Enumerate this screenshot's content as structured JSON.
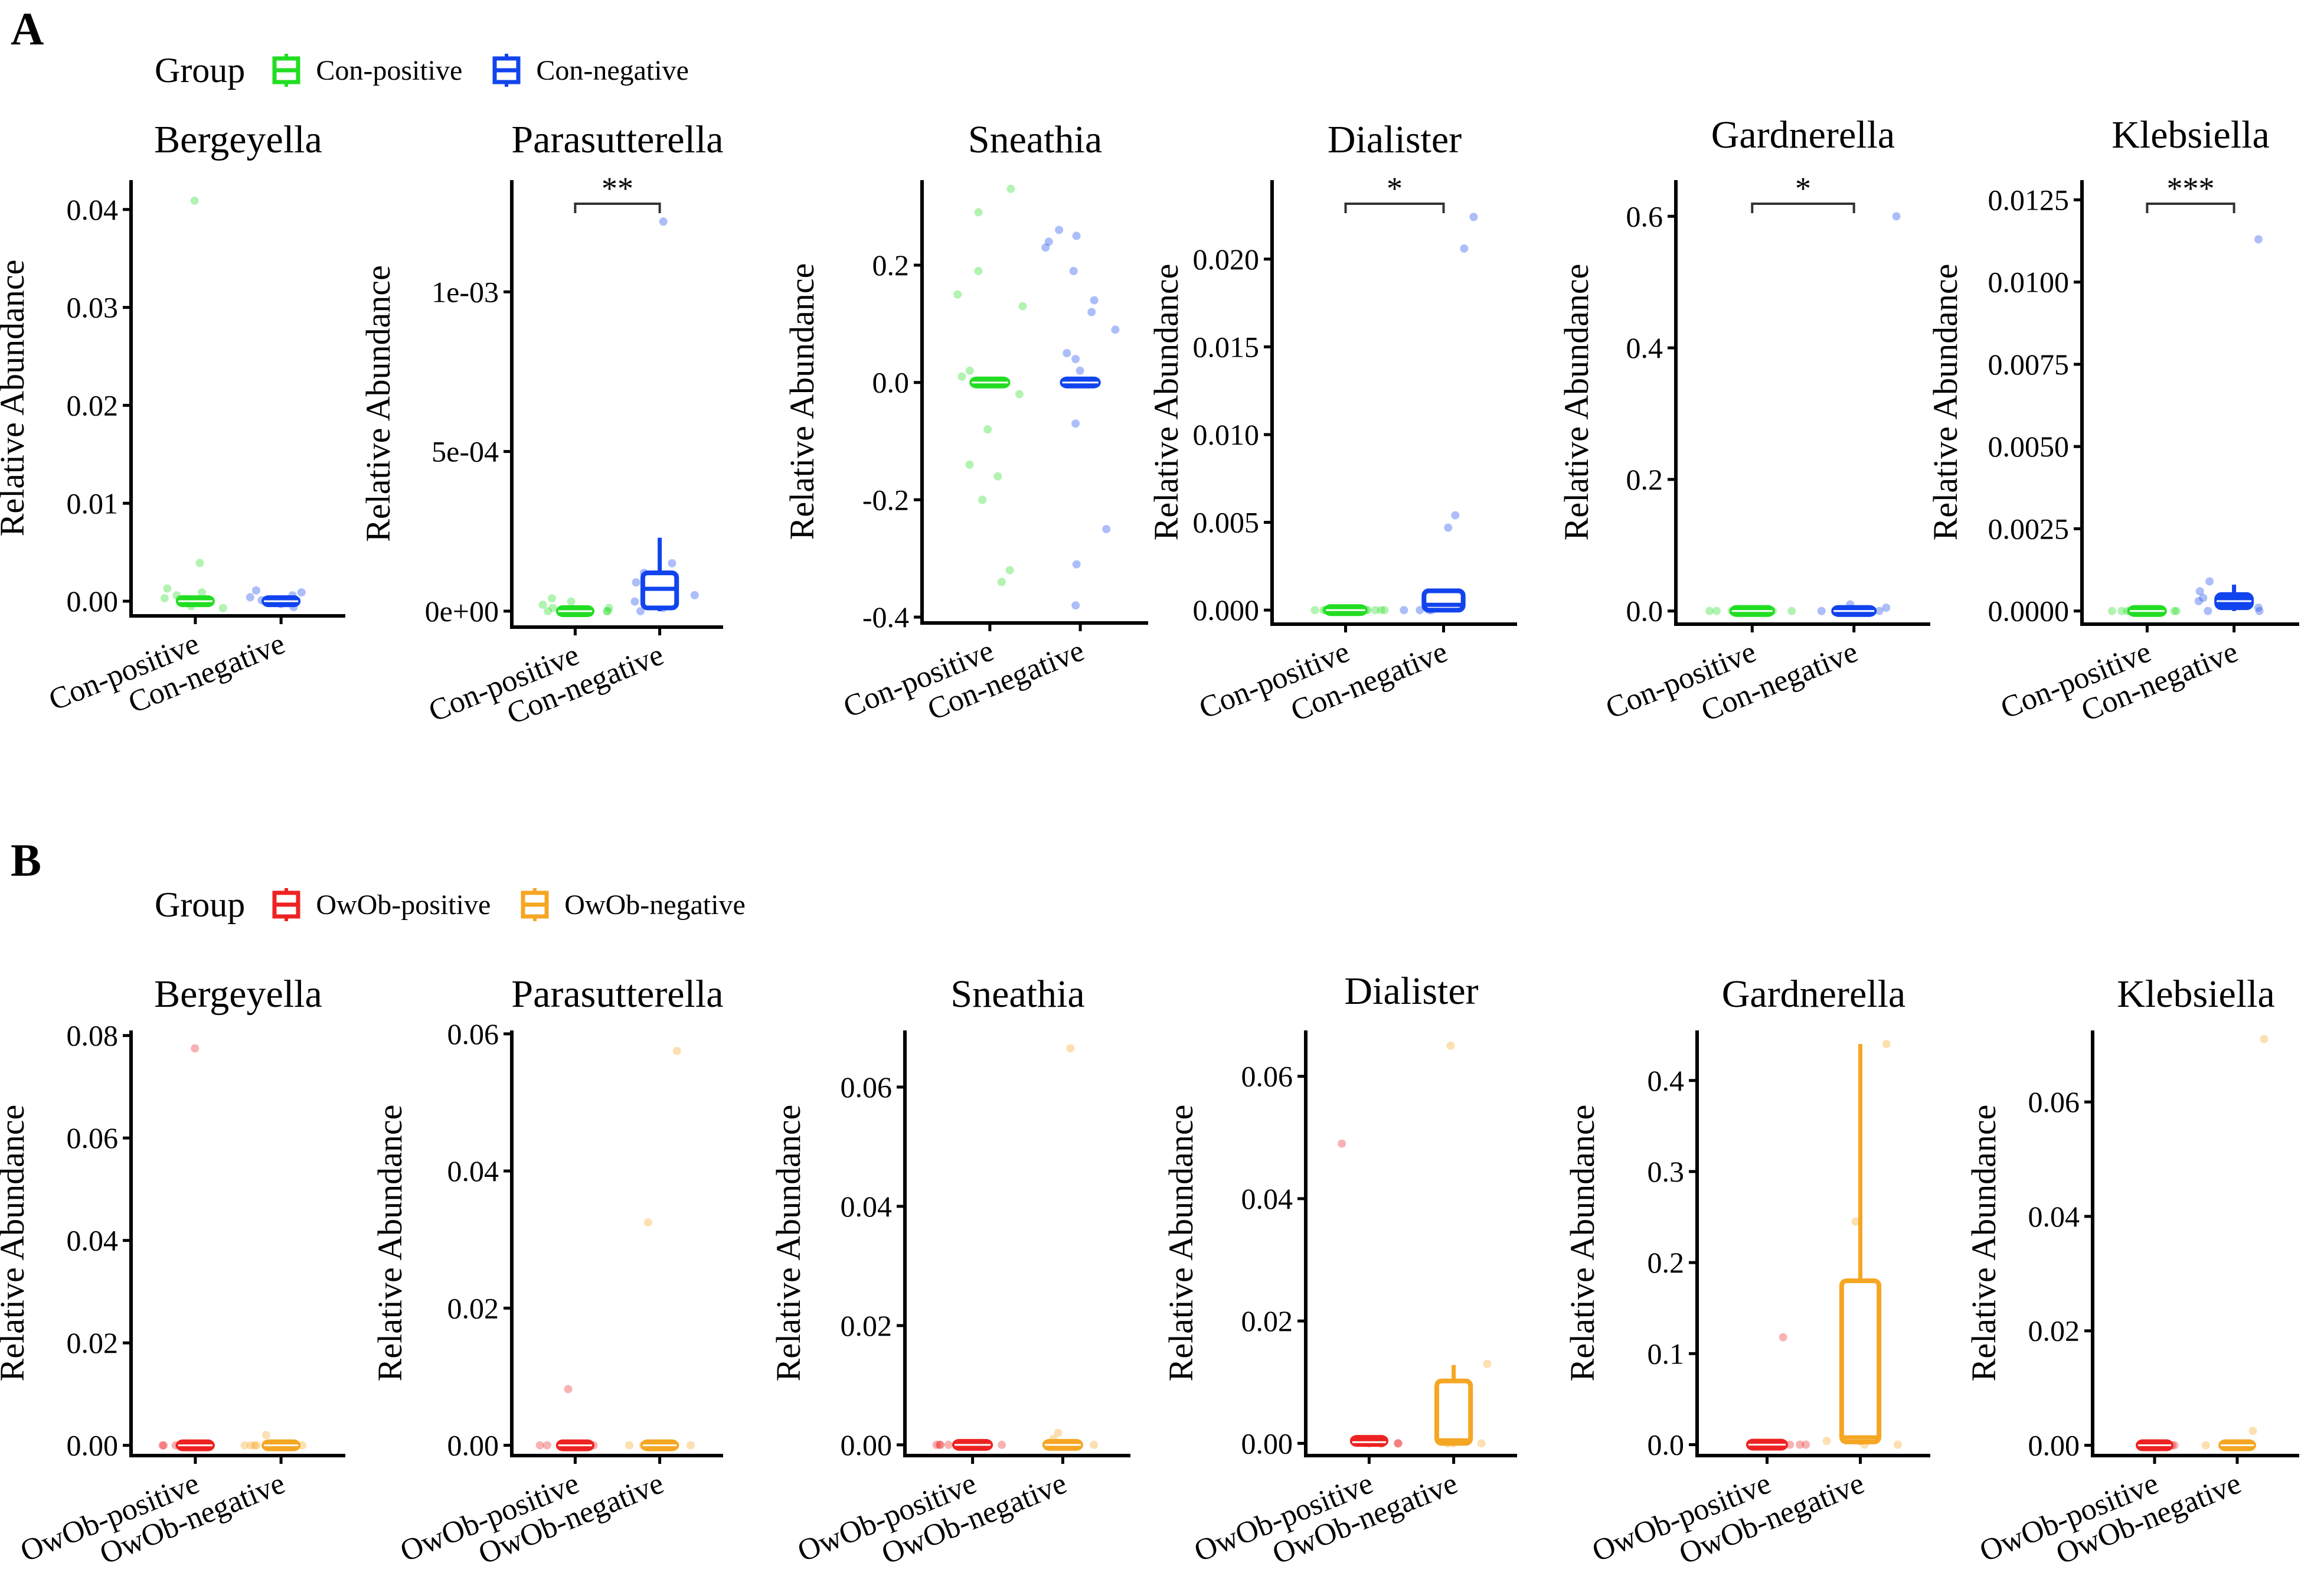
{
  "panels": [
    {
      "letter": "A",
      "legend": {
        "title": "Group",
        "items": [
          {
            "label": "Con-positive",
            "color": "#22dd22"
          },
          {
            "label": "Con-negative",
            "color": "#1144ee"
          }
        ]
      }
    },
    {
      "letter": "B",
      "legend": {
        "title": "Group",
        "items": [
          {
            "label": "OwOb-positive",
            "color": "#ee2222"
          },
          {
            "label": "OwOb-negative",
            "color": "#f5a623"
          }
        ]
      }
    }
  ],
  "chart_data": [
    {
      "type": "box",
      "panel": "A",
      "title": "Bergeyella",
      "ylabel": "Relative Abundance",
      "categories": [
        "Con-positive",
        "Con-negative"
      ],
      "ylim": [
        -0.0015,
        0.043
      ],
      "ticks": [
        0,
        0.01,
        0.02,
        0.03,
        0.04
      ],
      "tick_labels": [
        "0.00",
        "0.01",
        "0.02",
        "0.03",
        "0.04"
      ],
      "colors": [
        "#22dd22",
        "#1144ee"
      ],
      "sig": null,
      "boxes": [
        {
          "q1": 0,
          "median": 0,
          "q3": 0,
          "whisker_low": 0,
          "whisker_high": 0,
          "filled": true
        },
        {
          "q1": 0,
          "median": 0,
          "q3": 0,
          "whisker_low": 0,
          "whisker_high": 0,
          "filled": true
        }
      ],
      "points": [
        [
          0.0409,
          0.0039,
          0.0013,
          0.0006,
          -0.0005,
          0.0001,
          0.0003,
          -0.0007,
          0.0009,
          0,
          0.0002
        ],
        [
          0.0009,
          0.0006,
          0.0004,
          -0.0003,
          0.0001,
          -0.0006,
          0.0011,
          0.0002,
          0
        ]
      ]
    },
    {
      "type": "box",
      "panel": "A",
      "title": "Parasutterella",
      "ylabel": "Relative Abundance",
      "categories": [
        "Con-positive",
        "Con-negative"
      ],
      "ylim": [
        -5e-05,
        0.00135
      ],
      "ticks": [
        0,
        0.0005,
        0.001
      ],
      "tick_labels": [
        "0e+00",
        "5e-04",
        "1e-03"
      ],
      "colors": [
        "#22dd22",
        "#1144ee"
      ],
      "sig": "**",
      "boxes": [
        {
          "q1": 0,
          "median": 0,
          "q3": 0,
          "whisker_low": 0,
          "whisker_high": 0,
          "filled": true
        },
        {
          "q1": 1e-05,
          "median": 7e-05,
          "q3": 0.00012,
          "whisker_low": 0,
          "whisker_high": 0.00023,
          "filled": false
        }
      ],
      "points": [
        [
          4e-05,
          2e-05,
          0,
          1e-05,
          0,
          3e-05,
          0,
          1e-05,
          0
        ],
        [
          0.00122,
          0.00015,
          0.00012,
          9e-05,
          5e-05,
          2e-05,
          0,
          1e-05,
          0.0001,
          3e-05
        ]
      ]
    },
    {
      "type": "box",
      "panel": "A",
      "title": "Sneathia",
      "ylabel": "Relative Abundance",
      "categories": [
        "Con-positive",
        "Con-negative"
      ],
      "ylim": [
        -0.41,
        0.345
      ],
      "ticks": [
        -0.4,
        -0.2,
        0,
        0.2
      ],
      "tick_labels": [
        "-0.4",
        "-0.2",
        "0.0",
        "0.2"
      ],
      "colors": [
        "#22dd22",
        "#1144ee"
      ],
      "sig": null,
      "boxes": [
        {
          "q1": 0,
          "median": 0,
          "q3": 0,
          "whisker_low": 0,
          "whisker_high": 0,
          "filled": true
        },
        {
          "q1": 0,
          "median": 0,
          "q3": 0,
          "whisker_low": 0,
          "whisker_high": 0,
          "filled": true
        }
      ],
      "points": [
        [
          0.33,
          0.29,
          0.19,
          0.15,
          0.13,
          0.02,
          -0.02,
          -0.08,
          -0.14,
          -0.16,
          -0.2,
          -0.32,
          -0.34,
          0.01
        ],
        [
          0.26,
          0.25,
          0.24,
          0.23,
          0.19,
          0.14,
          0.12,
          0.09,
          0.05,
          0.04,
          0.02,
          -0.07,
          -0.25,
          -0.31,
          -0.38
        ]
      ]
    },
    {
      "type": "box",
      "panel": "A",
      "title": "Dialister",
      "ylabel": "Relative Abundance",
      "categories": [
        "Con-positive",
        "Con-negative"
      ],
      "ylim": [
        -0.0008,
        0.0245
      ],
      "ticks": [
        0,
        0.005,
        0.01,
        0.015,
        0.02
      ],
      "tick_labels": [
        "0.000",
        "0.005",
        "0.010",
        "0.015",
        "0.020"
      ],
      "colors": [
        "#22dd22",
        "#1144ee"
      ],
      "sig": "*",
      "boxes": [
        {
          "q1": 0,
          "median": 0,
          "q3": 0,
          "whisker_low": 0,
          "whisker_high": 0,
          "filled": true
        },
        {
          "q1": 0,
          "median": 0.0003,
          "q3": 0.0011,
          "whisker_low": 0,
          "whisker_high": 0.0011,
          "filled": false
        }
      ],
      "points": [
        [
          0,
          0,
          0,
          0,
          0,
          0,
          0,
          0,
          0
        ],
        [
          0.0224,
          0.0206,
          0.0054,
          0.0047,
          0,
          0,
          0,
          0
        ]
      ]
    },
    {
      "type": "box",
      "panel": "A",
      "title": "Gardnerella",
      "ylabel": "Relative Abundance",
      "categories": [
        "Con-positive",
        "Con-negative"
      ],
      "ylim": [
        -0.02,
        0.655
      ],
      "ticks": [
        0,
        0.2,
        0.4,
        0.6
      ],
      "tick_labels": [
        "0.0",
        "0.2",
        "0.4",
        "0.6"
      ],
      "colors": [
        "#22dd22",
        "#1144ee"
      ],
      "sig": "*",
      "boxes": [
        {
          "q1": 0,
          "median": 0,
          "q3": 0,
          "whisker_low": 0,
          "whisker_high": 0,
          "filled": true
        },
        {
          "q1": 0,
          "median": 0,
          "q3": 0,
          "whisker_low": 0,
          "whisker_high": 0,
          "filled": true
        }
      ],
      "points": [
        [
          0,
          0,
          0,
          0,
          0,
          0,
          0,
          0,
          0,
          0
        ],
        [
          0.6,
          0.01,
          0.005,
          0,
          0,
          0,
          0
        ]
      ]
    },
    {
      "type": "box",
      "panel": "A",
      "title": "Klebsiella",
      "ylabel": "Relative Abundance",
      "categories": [
        "Con-positive",
        "Con-negative"
      ],
      "ylim": [
        -0.0004,
        0.0131
      ],
      "ticks": [
        0,
        0.0025,
        0.005,
        0.0075,
        0.01,
        0.0125
      ],
      "tick_labels": [
        "0.0000",
        "0.0025",
        "0.0050",
        "0.0075",
        "0.0100",
        "0.0125"
      ],
      "colors": [
        "#22dd22",
        "#1144ee"
      ],
      "sig": "***",
      "boxes": [
        {
          "q1": 0,
          "median": 0,
          "q3": 0,
          "whisker_low": 0,
          "whisker_high": 0,
          "filled": true
        },
        {
          "q1": 0.0001,
          "median": 0.0003,
          "q3": 0.0005,
          "whisker_low": 0,
          "whisker_high": 0.0008,
          "filled": true
        }
      ],
      "points": [
        [
          0,
          0,
          0,
          0,
          0,
          0,
          0,
          0,
          0
        ],
        [
          0.0113,
          0.0009,
          0.0006,
          0.0004,
          0.0003,
          0.0002,
          0.0001,
          0,
          0
        ]
      ]
    },
    {
      "type": "box",
      "panel": "B",
      "title": "Bergeyella",
      "ylabel": "Relative Abundance",
      "categories": [
        "OwOb-positive",
        "OwOb-negative"
      ],
      "ylim": [
        -0.002,
        0.081
      ],
      "ticks": [
        0,
        0.02,
        0.04,
        0.06,
        0.08
      ],
      "tick_labels": [
        "0.00",
        "0.02",
        "0.04",
        "0.06",
        "0.08"
      ],
      "colors": [
        "#ee2222",
        "#f5a623"
      ],
      "sig": null,
      "boxes": [
        {
          "q1": 0,
          "median": 0,
          "q3": 0,
          "whisker_low": 0,
          "whisker_high": 0,
          "filled": true
        },
        {
          "q1": 0,
          "median": 0,
          "q3": 0,
          "whisker_low": 0,
          "whisker_high": 0,
          "filled": true
        }
      ],
      "points": [
        [
          0.0775,
          0,
          0,
          0,
          0,
          0,
          0
        ],
        [
          0.002,
          0,
          0,
          0,
          0,
          0,
          0
        ]
      ]
    },
    {
      "type": "box",
      "panel": "B",
      "title": "Parasutterella",
      "ylabel": "Relative Abundance",
      "categories": [
        "OwOb-positive",
        "OwOb-negative"
      ],
      "ylim": [
        -0.0015,
        0.0605
      ],
      "ticks": [
        0,
        0.02,
        0.04,
        0.06
      ],
      "tick_labels": [
        "0.00",
        "0.02",
        "0.04",
        "0.06"
      ],
      "colors": [
        "#ee2222",
        "#f5a623"
      ],
      "sig": null,
      "boxes": [
        {
          "q1": 0,
          "median": 0,
          "q3": 0,
          "whisker_low": 0,
          "whisker_high": 0,
          "filled": true
        },
        {
          "q1": 0,
          "median": 0,
          "q3": 0,
          "whisker_low": 0,
          "whisker_high": 0,
          "filled": true
        }
      ],
      "points": [
        [
          0.0082,
          0,
          0,
          0,
          0,
          0,
          0
        ],
        [
          0.0575,
          0.0325,
          0,
          0,
          0,
          0,
          0,
          0
        ]
      ]
    },
    {
      "type": "box",
      "panel": "B",
      "title": "Sneathia",
      "ylabel": "Relative Abundance",
      "categories": [
        "OwOb-positive",
        "OwOb-negative"
      ],
      "ylim": [
        -0.0018,
        0.0695
      ],
      "ticks": [
        0,
        0.02,
        0.04,
        0.06
      ],
      "tick_labels": [
        "0.00",
        "0.02",
        "0.04",
        "0.06"
      ],
      "colors": [
        "#ee2222",
        "#f5a623"
      ],
      "sig": null,
      "boxes": [
        {
          "q1": 0,
          "median": 0,
          "q3": 0,
          "whisker_low": 0,
          "whisker_high": 0,
          "filled": true
        },
        {
          "q1": 0,
          "median": 0,
          "q3": 0,
          "whisker_low": 0,
          "whisker_high": 0,
          "filled": true
        }
      ],
      "points": [
        [
          0,
          0,
          0,
          0,
          0,
          0
        ],
        [
          0.0665,
          0.002,
          0.001,
          0,
          0,
          0,
          0
        ]
      ]
    },
    {
      "type": "box",
      "panel": "B",
      "title": "Dialister",
      "ylabel": "Relative Abundance",
      "categories": [
        "OwOb-positive",
        "OwOb-negative"
      ],
      "ylim": [
        -0.002,
        0.0675
      ],
      "ticks": [
        0,
        0.02,
        0.04,
        0.06
      ],
      "tick_labels": [
        "0.00",
        "0.02",
        "0.04",
        "0.06"
      ],
      "colors": [
        "#ee2222",
        "#f5a623"
      ],
      "sig": null,
      "boxes": [
        {
          "q1": 0,
          "median": 0.0002,
          "q3": 0.0008,
          "whisker_low": 0,
          "whisker_high": 0.0008,
          "filled": true
        },
        {
          "q1": 0,
          "median": 0.0005,
          "q3": 0.0102,
          "whisker_low": 0,
          "whisker_high": 0.0128,
          "filled": false
        }
      ],
      "points": [
        [
          0.049,
          0,
          0,
          0,
          0,
          0
        ],
        [
          0.065,
          0.013,
          0,
          0,
          0
        ]
      ]
    },
    {
      "type": "box",
      "panel": "B",
      "title": "Gardnerella",
      "ylabel": "Relative Abundance",
      "categories": [
        "OwOb-positive",
        "OwOb-negative"
      ],
      "ylim": [
        -0.012,
        0.455
      ],
      "ticks": [
        0,
        0.1,
        0.2,
        0.3,
        0.4
      ],
      "tick_labels": [
        "0.0",
        "0.1",
        "0.2",
        "0.3",
        "0.4"
      ],
      "colors": [
        "#ee2222",
        "#f5a623"
      ],
      "sig": null,
      "boxes": [
        {
          "q1": 0,
          "median": 0,
          "q3": 0,
          "whisker_low": 0,
          "whisker_high": 0,
          "filled": true
        },
        {
          "q1": 0.003,
          "median": 0.008,
          "q3": 0.18,
          "whisker_low": 0,
          "whisker_high": 0.44,
          "filled": false
        }
      ],
      "points": [
        [
          0.118,
          0,
          0,
          0,
          0,
          0
        ],
        [
          0.44,
          0.245,
          0.004,
          0,
          0
        ]
      ]
    },
    {
      "type": "box",
      "panel": "B",
      "title": "Klebsiella",
      "ylabel": "Relative Abundance",
      "categories": [
        "OwOb-positive",
        "OwOb-negative"
      ],
      "ylim": [
        -0.0018,
        0.0725
      ],
      "ticks": [
        0,
        0.02,
        0.04,
        0.06
      ],
      "tick_labels": [
        "0.00",
        "0.02",
        "0.04",
        "0.06"
      ],
      "colors": [
        "#ee2222",
        "#f5a623"
      ],
      "sig": null,
      "boxes": [
        {
          "q1": 0,
          "median": 0,
          "q3": 0,
          "whisker_low": 0,
          "whisker_high": 0,
          "filled": true
        },
        {
          "q1": 0,
          "median": 0,
          "q3": 0,
          "whisker_low": 0,
          "whisker_high": 0,
          "filled": true
        }
      ],
      "points": [
        [
          0,
          0,
          0,
          0,
          0,
          0
        ],
        [
          0.071,
          0.0025,
          0,
          0,
          0
        ]
      ]
    }
  ]
}
